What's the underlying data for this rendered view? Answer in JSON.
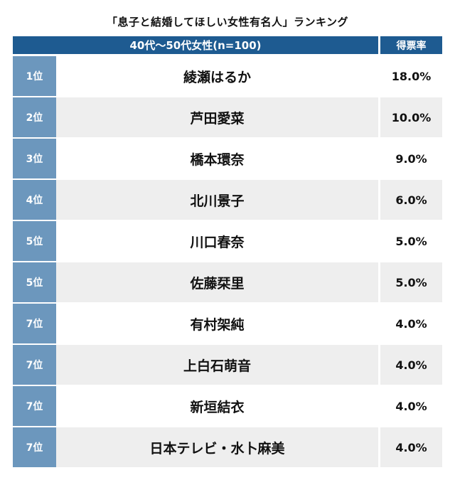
{
  "title": "「息子と結婚してほしい女性有名人」ランキング",
  "header": {
    "group_label": "40代〜50代女性(n=100)",
    "rate_label": "得票率"
  },
  "rows": [
    {
      "rank": "1位",
      "name": "綾瀬はるか",
      "rate": "18.0%"
    },
    {
      "rank": "2位",
      "name": "芦田愛菜",
      "rate": "10.0%"
    },
    {
      "rank": "3位",
      "name": "橋本環奈",
      "rate": "9.0%"
    },
    {
      "rank": "4位",
      "name": "北川景子",
      "rate": "6.0%"
    },
    {
      "rank": "5位",
      "name": "川口春奈",
      "rate": "5.0%"
    },
    {
      "rank": "5位",
      "name": "佐藤栞里",
      "rate": "5.0%"
    },
    {
      "rank": "7位",
      "name": "有村架純",
      "rate": "4.0%"
    },
    {
      "rank": "7位",
      "name": "上白石萌音",
      "rate": "4.0%"
    },
    {
      "rank": "7位",
      "name": "新垣結衣",
      "rate": "4.0%"
    },
    {
      "rank": "7位",
      "name": "日本テレビ・水卜麻美",
      "rate": "4.0%"
    }
  ],
  "colors": {
    "header_bg": "#1e5b91",
    "rank_bg": "#6c97bd",
    "stripe_bg": "#eeeeee"
  }
}
